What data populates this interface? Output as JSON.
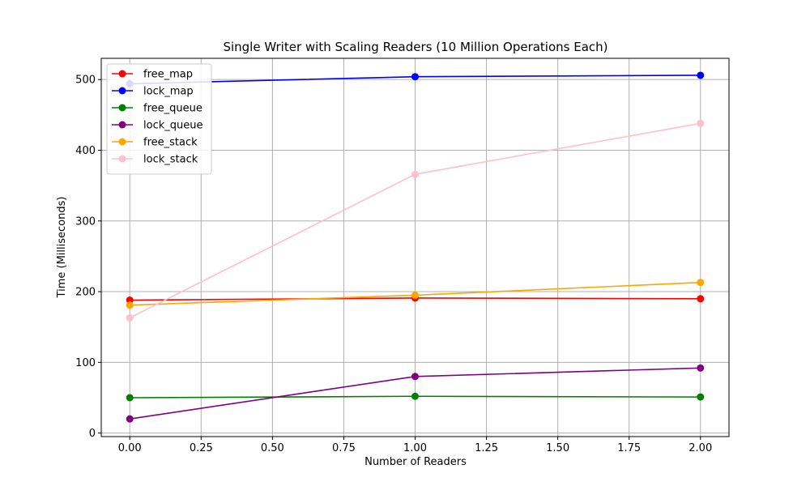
{
  "chart_data": {
    "type": "line",
    "title": "Single Writer with Scaling Readers (10 Million Operations Each)",
    "xlabel": "Number of Readers",
    "ylabel": "Time (Milliseconds)",
    "x": [
      0,
      1,
      2
    ],
    "xlim": [
      -0.1,
      2.1
    ],
    "ylim": [
      -5,
      530
    ],
    "xticks": [
      0.0,
      0.25,
      0.5,
      0.75,
      1.0,
      1.25,
      1.5,
      1.75,
      2.0
    ],
    "xtick_labels": [
      "0.00",
      "0.25",
      "0.50",
      "0.75",
      "1.00",
      "1.25",
      "1.50",
      "1.75",
      "2.00"
    ],
    "yticks": [
      0,
      100,
      200,
      300,
      400,
      500
    ],
    "ytick_labels": [
      "0",
      "100",
      "200",
      "300",
      "400",
      "500"
    ],
    "grid": true,
    "legend_position": "top-left",
    "series": [
      {
        "name": "free_map",
        "color": "#ff0000",
        "values": [
          188,
          191,
          190
        ]
      },
      {
        "name": "lock_map",
        "color": "#0000ff",
        "values": [
          494,
          504,
          506
        ]
      },
      {
        "name": "free_queue",
        "color": "#008000",
        "values": [
          50,
          52,
          51
        ]
      },
      {
        "name": "lock_queue",
        "color": "#800080",
        "values": [
          20,
          80,
          92
        ]
      },
      {
        "name": "free_stack",
        "color": "#ffa500",
        "values": [
          181,
          195,
          213
        ]
      },
      {
        "name": "lock_stack",
        "color": "#ffc0cb",
        "values": [
          163,
          366,
          438
        ]
      }
    ]
  }
}
